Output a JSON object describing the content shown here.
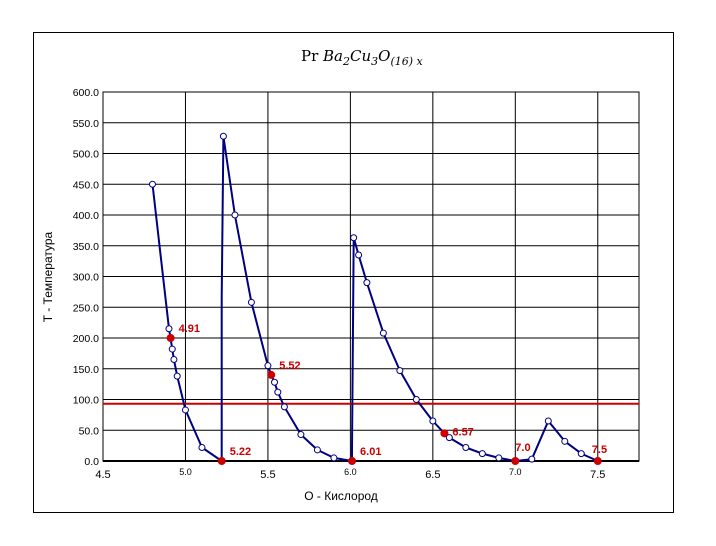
{
  "colors": {
    "curve": "#000080",
    "threshold": "#cc0000",
    "annotation": "#cc0000",
    "grid": "#000000",
    "marker_fill": "#ffffff"
  },
  "chart_data": {
    "type": "line",
    "title": {
      "prefix": "Pr ",
      "ba": "Ba",
      "ba_sub": "2",
      "cu": "Cu",
      "cu_sub": "3",
      "o": "O",
      "o_sub": "(16) x"
    },
    "xlabel": "O -  Кислород",
    "ylabel": "T -  Температура",
    "xlim": [
      4.5,
      7.75
    ],
    "ylim": [
      0,
      600
    ],
    "grid": true,
    "x_major_ticks": [
      {
        "value": 4.5,
        "label": "4.5"
      },
      {
        "value": 5.5,
        "label": "5.5"
      },
      {
        "value": 6.5,
        "label": "6.5"
      },
      {
        "value": 7.5,
        "label": "7.5"
      }
    ],
    "x_minor_ticks": [
      {
        "value": 5.0,
        "label": "5.0"
      },
      {
        "value": 6.0,
        "label": "6.0"
      },
      {
        "value": 7.0,
        "label": "7.0"
      }
    ],
    "y_ticks": [
      "0.0",
      "50.0",
      "100.0",
      "150.0",
      "200.0",
      "250.0",
      "300.0",
      "350.0",
      "400.0",
      "450.0",
      "500.0",
      "550.0",
      "600.0"
    ],
    "threshold_y": 93,
    "series": [
      {
        "points": [
          [
            4.8,
            450
          ],
          [
            4.9,
            215
          ],
          [
            4.92,
            182
          ],
          [
            4.93,
            165
          ],
          [
            4.95,
            138
          ],
          [
            5.0,
            83
          ],
          [
            5.1,
            22
          ],
          [
            5.22,
            0
          ],
          [
            5.22,
            265
          ],
          [
            5.23,
            528
          ],
          [
            5.3,
            400
          ],
          [
            5.4,
            258
          ],
          [
            5.5,
            155
          ],
          [
            5.52,
            140
          ],
          [
            5.54,
            128
          ],
          [
            5.56,
            112
          ],
          [
            5.6,
            88
          ],
          [
            5.7,
            43
          ],
          [
            5.8,
            18
          ],
          [
            5.9,
            5
          ],
          [
            6.01,
            0
          ],
          [
            6.01,
            20
          ],
          [
            6.02,
            363
          ],
          [
            6.05,
            335
          ],
          [
            6.1,
            290
          ],
          [
            6.2,
            208
          ],
          [
            6.3,
            147
          ],
          [
            6.4,
            100
          ],
          [
            6.5,
            65
          ],
          [
            6.57,
            45
          ],
          [
            6.6,
            38
          ],
          [
            6.7,
            22
          ],
          [
            6.8,
            12
          ],
          [
            6.9,
            5
          ],
          [
            7.0,
            0
          ],
          [
            7.1,
            3
          ],
          [
            7.2,
            65
          ],
          [
            7.3,
            32
          ],
          [
            7.4,
            12
          ],
          [
            7.5,
            0
          ]
        ],
        "open_markers": [
          [
            4.8,
            450
          ],
          [
            4.9,
            215
          ],
          [
            4.92,
            182
          ],
          [
            4.93,
            165
          ],
          [
            4.95,
            138
          ],
          [
            5.0,
            83
          ],
          [
            5.1,
            22
          ],
          [
            5.23,
            528
          ],
          [
            5.3,
            400
          ],
          [
            5.4,
            258
          ],
          [
            5.5,
            155
          ],
          [
            5.54,
            128
          ],
          [
            5.56,
            112
          ],
          [
            5.6,
            88
          ],
          [
            5.7,
            43
          ],
          [
            5.8,
            18
          ],
          [
            5.9,
            5
          ],
          [
            6.02,
            363
          ],
          [
            6.05,
            335
          ],
          [
            6.1,
            290
          ],
          [
            6.2,
            208
          ],
          [
            6.3,
            147
          ],
          [
            6.4,
            100
          ],
          [
            6.5,
            65
          ],
          [
            6.6,
            38
          ],
          [
            6.7,
            22
          ],
          [
            6.8,
            12
          ],
          [
            6.9,
            5
          ],
          [
            7.1,
            3
          ],
          [
            7.2,
            65
          ],
          [
            7.3,
            32
          ],
          [
            7.4,
            12
          ]
        ]
      }
    ],
    "annotations": [
      {
        "x": 4.91,
        "y": 200,
        "label": "4.91",
        "pos": "right-up"
      },
      {
        "x": 5.22,
        "y": 0,
        "label": "5.22",
        "pos": "right-up"
      },
      {
        "x": 5.52,
        "y": 140,
        "label": "5.52",
        "pos": "right-up"
      },
      {
        "x": 6.01,
        "y": 0,
        "label": "6.01",
        "pos": "right-up"
      },
      {
        "x": 6.57,
        "y": 45,
        "label": "6.57",
        "pos": "right"
      },
      {
        "x": 7.0,
        "y": 0,
        "label": "7.0",
        "pos": "up"
      },
      {
        "x": 7.5,
        "y": 0,
        "label": "7.5",
        "pos": "left-up"
      }
    ]
  }
}
